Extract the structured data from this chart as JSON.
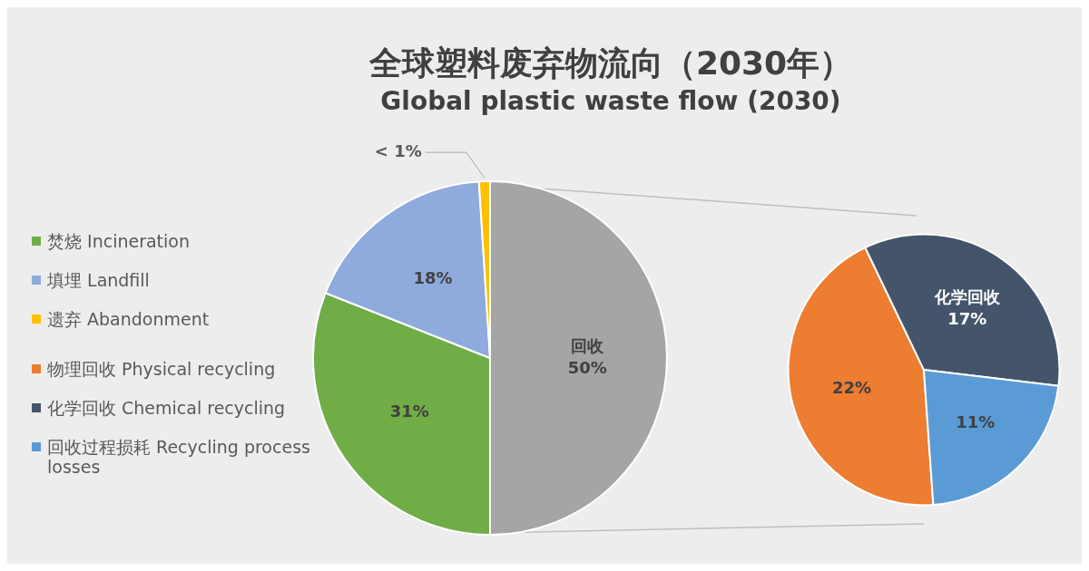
{
  "chart_data": [
    {
      "type": "pie",
      "title": "全球塑料废弃物流向（2030年）",
      "subtitle": "Global plastic waste flow (2030)",
      "categories": [
        "焚烧 Incineration",
        "填埋 Landfill",
        "遗弃 Abandonment",
        null
      ],
      "values": [
        31,
        18,
        1,
        50
      ],
      "colors": [
        "#70ad47",
        "#8faadc",
        "#ffc000",
        "#a5a5a5"
      ],
      "value_labels": [
        "31%",
        "18%",
        "< 1%",
        "回收\n50%"
      ],
      "legend": "left"
    },
    {
      "type": "pie",
      "categories": [
        "物理回收 Physical recycling",
        "化学回收 Chemical recycling",
        "回收过程损耗 Recycling process losses"
      ],
      "values": [
        22,
        17,
        11
      ],
      "colors": [
        "#ed7d31",
        "#44546a",
        "#5b9bd5"
      ],
      "value_labels": [
        "22%",
        "化学回收\n17%",
        "11%"
      ],
      "legend": "left"
    }
  ]
}
